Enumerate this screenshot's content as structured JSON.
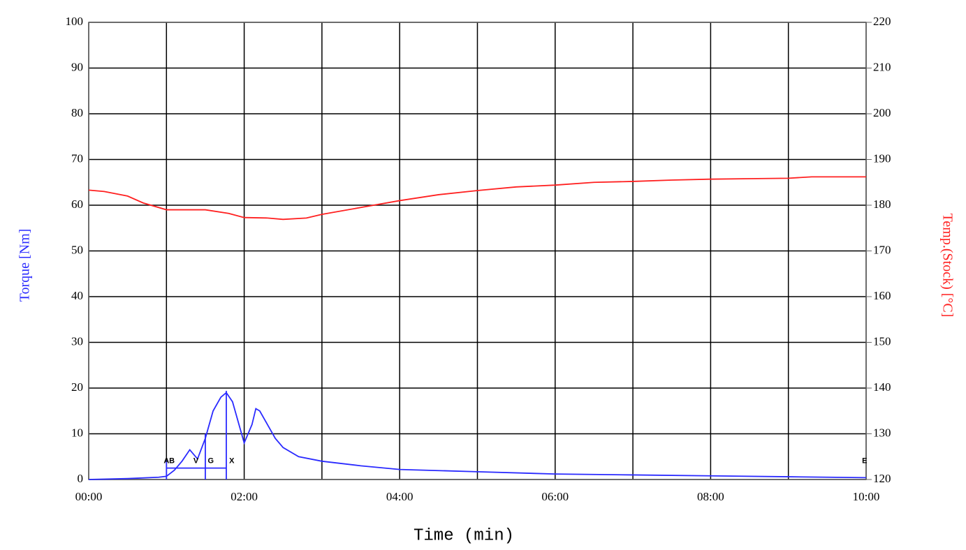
{
  "chart_data": {
    "type": "line",
    "y_label": "Torque [Nm]",
    "y2_label": "Temp.(Stock) [°C]",
    "x_label": "Time (min)",
    "xlim": [
      0,
      10
    ],
    "xticks": [
      {
        "value": 0,
        "label": "00:00"
      },
      {
        "value": 2,
        "label": "02:00"
      },
      {
        "value": 4,
        "label": "04:00"
      },
      {
        "value": 6,
        "label": "06:00"
      },
      {
        "value": 8,
        "label": "08:00"
      },
      {
        "value": 10,
        "label": "10:00"
      }
    ],
    "x_minor_ticks": [
      1,
      3,
      5,
      7,
      9
    ],
    "ylim": [
      0,
      100
    ],
    "yticks": [
      0,
      10,
      20,
      30,
      40,
      50,
      60,
      70,
      80,
      90,
      100
    ],
    "y2lim": [
      120,
      220
    ],
    "y2ticks": [
      120,
      130,
      140,
      150,
      160,
      170,
      180,
      190,
      200,
      210,
      220
    ],
    "grid": true,
    "series": [
      {
        "name": "Torque",
        "color": "#2a2aff",
        "x": [
          0,
          0.5,
          0.9,
          1.0,
          1.1,
          1.2,
          1.3,
          1.4,
          1.5,
          1.6,
          1.7,
          1.77,
          1.85,
          1.95,
          2.0,
          2.1,
          2.15,
          2.2,
          2.3,
          2.4,
          2.5,
          2.7,
          3.0,
          3.5,
          4.0,
          5.0,
          6.0,
          7.0,
          8.0,
          9.0,
          10.0
        ],
        "values": [
          0,
          0.2,
          0.5,
          0.7,
          2,
          4,
          6.5,
          4.5,
          9,
          15,
          18,
          19,
          17,
          11,
          8,
          12,
          15.5,
          15,
          12,
          9,
          7,
          5,
          4,
          3,
          2.2,
          1.7,
          1.2,
          1.0,
          0.8,
          0.6,
          0.4
        ]
      },
      {
        "name": "Temp",
        "color": "#ff2020",
        "axis": "y2",
        "x": [
          0,
          0.2,
          0.5,
          0.7,
          1.0,
          1.5,
          1.8,
          2.0,
          2.3,
          2.5,
          2.8,
          3.0,
          3.5,
          4.0,
          4.5,
          5.0,
          5.5,
          6.0,
          6.5,
          7.0,
          7.5,
          8.0,
          8.5,
          9.0,
          9.3,
          10.0
        ],
        "values": [
          183.3,
          183,
          182,
          180.5,
          179,
          179,
          178.2,
          177.3,
          177.2,
          176.9,
          177.2,
          178,
          179.5,
          181,
          182.3,
          183.2,
          184,
          184.4,
          185,
          185.2,
          185.5,
          185.7,
          185.8,
          185.9,
          186.2,
          186.2
        ]
      }
    ],
    "markers": [
      {
        "label": "A",
        "x": 1.0
      },
      {
        "label": "B",
        "x": 1.07
      },
      {
        "label": "V",
        "x": 1.38
      },
      {
        "label": "G",
        "x": 1.57
      },
      {
        "label": "X",
        "x": 1.84
      },
      {
        "label": "E",
        "x": 9.98
      }
    ],
    "marker_lines": [
      {
        "x": 1.0,
        "top": 4.2
      },
      {
        "x": 1.5,
        "top": 10
      },
      {
        "x": 1.77,
        "top": 19.4
      }
    ],
    "marker_baseline": 2.5
  }
}
